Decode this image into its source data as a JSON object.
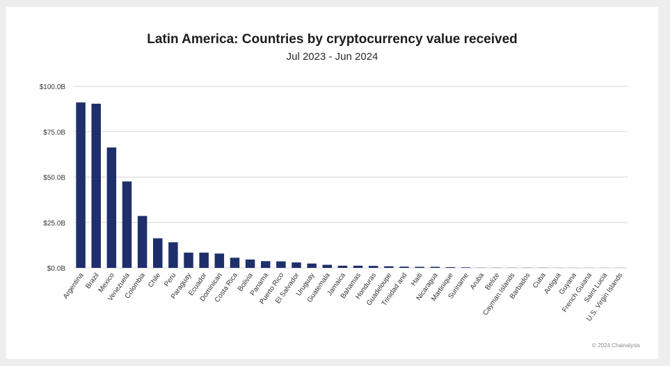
{
  "chart_data": {
    "type": "bar",
    "title": "Latin America: Countries by cryptocurrency value received",
    "subtitle": "Jul 2023 - Jun 2024",
    "xlabel": "",
    "ylabel": "",
    "ylim": [
      0,
      100
    ],
    "y_ticks": [
      0,
      25,
      50,
      75,
      100
    ],
    "y_tick_labels": [
      "$0.0B",
      "$25.0B",
      "$50.0B",
      "$75.0B",
      "$100.0B"
    ],
    "grid": true,
    "bar_color": "#1f2f6b",
    "categories": [
      "Argentina",
      "Brazil",
      "Mexico",
      "Venezuela",
      "Colombia",
      "Chile",
      "Peru",
      "Paraguay",
      "Ecuador",
      "Dominican",
      "Costa Rica",
      "Bolivia",
      "Panama",
      "Puerto Rico",
      "El Salvador",
      "Uruguay",
      "Guatemala",
      "Jamaica",
      "Bahamas",
      "Honduras",
      "Guadeloupe",
      "Trinidad and",
      "Haiti",
      "Nicaragua",
      "Martinique",
      "Suriname",
      "Aruba",
      "Belize",
      "Cayman Islands",
      "Barbados",
      "Cuba",
      "Antigua",
      "Guyana",
      "French Guiana",
      "Saint Lucia",
      "U.S. Virgin Islands"
    ],
    "values": [
      91.1,
      90.4,
      66.3,
      47.6,
      28.6,
      16.3,
      14.1,
      8.4,
      8.4,
      7.9,
      5.6,
      4.6,
      3.7,
      3.6,
      3.0,
      2.4,
      1.7,
      1.2,
      1.2,
      1.1,
      0.9,
      0.7,
      0.6,
      0.6,
      0.4,
      0.3,
      0.1,
      0.1,
      0.1,
      0.1,
      0.1,
      0.05,
      0.05,
      0.05,
      0.05,
      0.05
    ]
  },
  "footer": {
    "copyright": "© 2024 Chainalysis"
  }
}
